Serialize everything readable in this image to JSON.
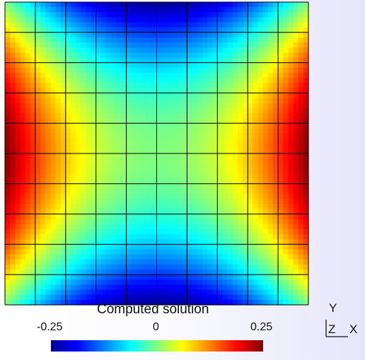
{
  "colorbar": {
    "title": "Computed solution",
    "ticks": [
      "-0.25",
      "0",
      "0.25"
    ],
    "range": [
      -0.35,
      0.35
    ],
    "colormap": [
      "#00008f",
      "#0000ff",
      "#0080ff",
      "#00ffff",
      "#80ff80",
      "#ffff00",
      "#ff8000",
      "#ff0000",
      "#800000"
    ]
  },
  "axes": {
    "y": "Y",
    "z": "Z",
    "x": "X"
  },
  "mesh": {
    "rows": 10,
    "cols": 10,
    "line_color": "#000000"
  }
}
